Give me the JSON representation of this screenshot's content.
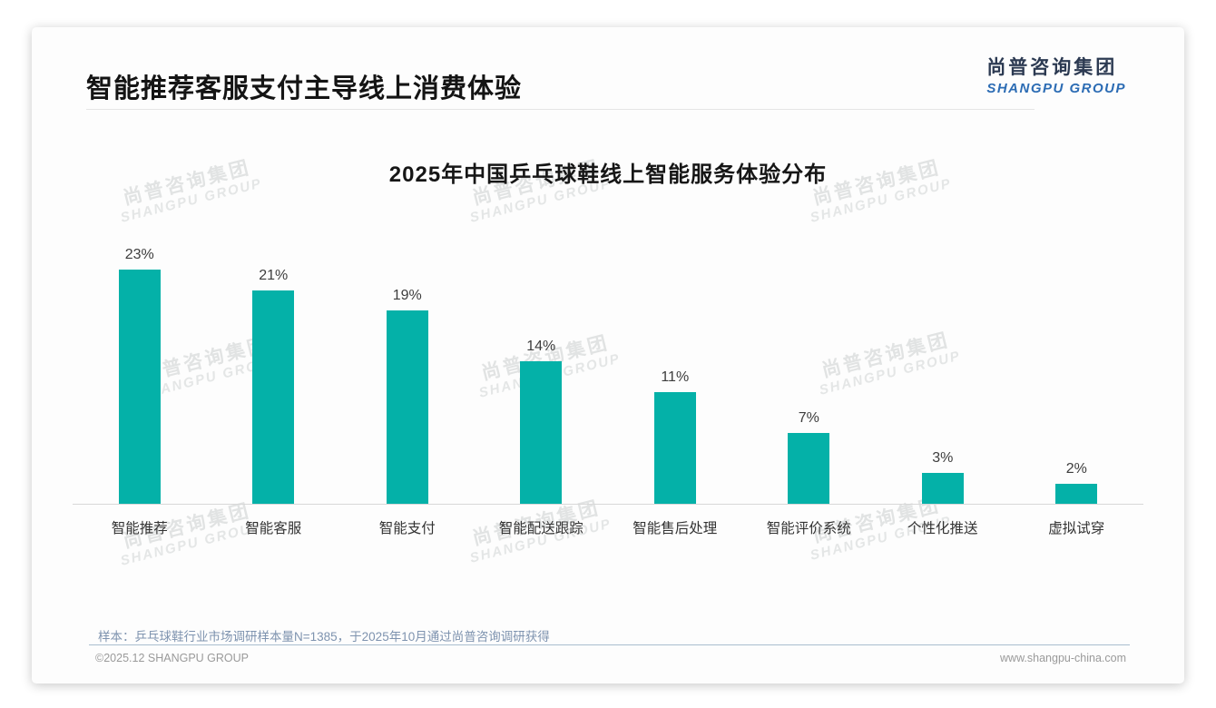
{
  "header": {
    "title": "智能推荐客服支付主导线上消费体验"
  },
  "logo": {
    "cn": "尚普咨询集团",
    "en": "SHANGPU GROUP"
  },
  "watermark": {
    "cn": "尚普咨询集团",
    "en": "SHANGPU GROUP"
  },
  "chart_data": {
    "type": "bar",
    "title": "2025年中国乒乓球鞋线上智能服务体验分布",
    "categories": [
      "智能推荐",
      "智能客服",
      "智能支付",
      "智能配送跟踪",
      "智能售后处理",
      "智能评价系统",
      "个性化推送",
      "虚拟试穿"
    ],
    "values": [
      23,
      21,
      19,
      14,
      11,
      7,
      3,
      2
    ],
    "labels": [
      "23%",
      "21%",
      "19%",
      "14%",
      "11%",
      "7%",
      "3%",
      "2%"
    ],
    "unit": "%",
    "xlabel": "",
    "ylabel": "",
    "ylim": [
      0,
      25
    ],
    "grid": false,
    "legend": false,
    "data_labels": true,
    "bar_color": "#04b1a8",
    "label_color": "#3d3d3d",
    "axis_color": "#d8d8d8"
  },
  "footnote": {
    "text": "样本：乒乓球鞋行业市场调研样本量N=1385，于2025年10月通过尚普咨询调研获得"
  },
  "footer": {
    "left": "©2025.12 SHANGPU GROUP",
    "right": "www.shangpu-china.com"
  }
}
